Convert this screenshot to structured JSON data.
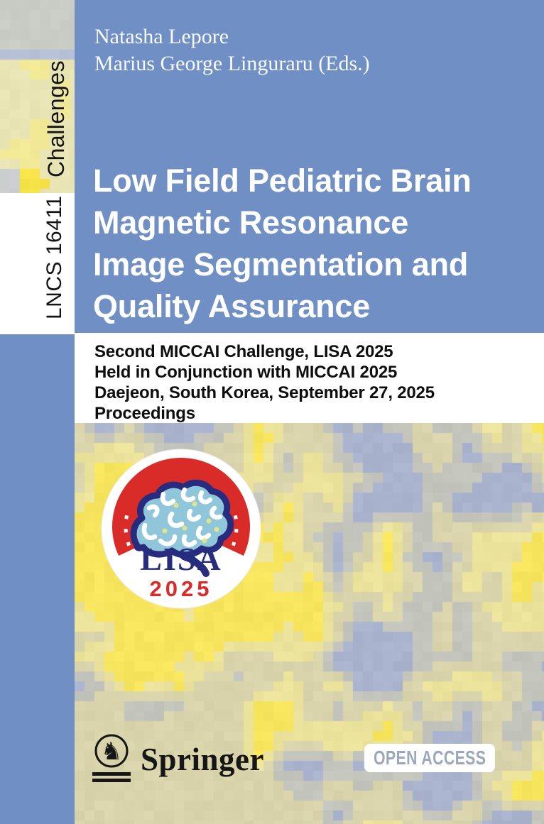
{
  "cover": {
    "series_label": "Challenges",
    "volume_label": "LNCS 16411",
    "editors": [
      "Natasha Lepore",
      "Marius George Linguraru (Eds.)"
    ],
    "title_lines": [
      "Low Field Pediatric Brain",
      "Magnetic Resonance",
      "Image Segmentation and",
      "Quality Assurance"
    ],
    "subtitle_lines": [
      "Second MICCAI Challenge, LISA 2025",
      "Held in Conjunction with MICCAI 2025",
      "Daejeon, South Korea, September 27, 2025",
      "Proceedings"
    ],
    "publisher_wordmark": "Springer",
    "open_access_label": "OPEN ACCESS",
    "event_logo": {
      "name": "LISA 2025",
      "acronym": "LISA",
      "year": "2025"
    },
    "colors": {
      "cover_blue": "#7090c5",
      "panel_white": "#ffffff",
      "subtitle_text": "#0e0e0e",
      "open_access_text": "#9ba8bb",
      "logo_red": "#d92b28",
      "logo_navy": "#272c7f",
      "logo_brain_fill": "#8fc6da",
      "logo_dot_yellow": "#dfe38d",
      "corner_gray": "#c9cdc6",
      "corner_blue_band": "#b6c0d6",
      "corner_pale_yellow": "#e9e4b3",
      "mosaic_palette": [
        "#a9b3cd",
        "#c3c5bd",
        "#d9d4ab",
        "#ebe29b",
        "#f8e55e"
      ]
    }
  }
}
